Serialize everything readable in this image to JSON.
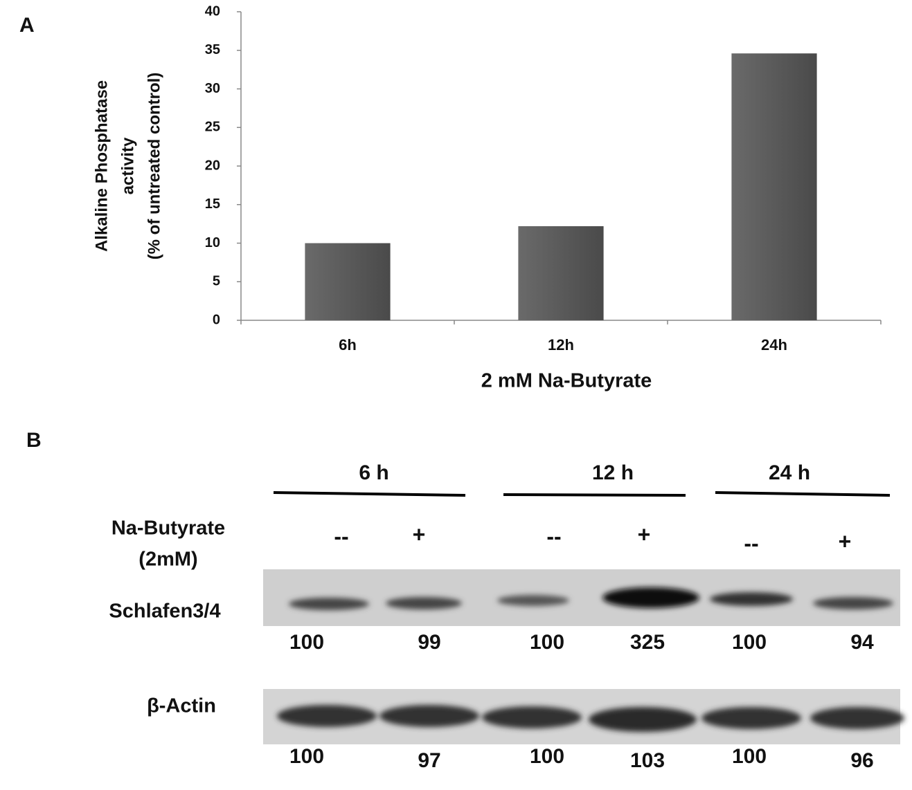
{
  "chart_data": {
    "type": "bar",
    "panel_label": "A",
    "y_label": [
      "Alkaline Phosphatase",
      "activity",
      "(% of untreated control)"
    ],
    "x_label": "2 mM Na-Butyrate",
    "categories": [
      "6h",
      "12h",
      "24h"
    ],
    "values": [
      10,
      12.2,
      34.6
    ],
    "color": "#595959",
    "ylim": [
      0,
      40
    ],
    "yticks": [
      0,
      5,
      10,
      15,
      20,
      25,
      30,
      35,
      40
    ]
  },
  "blot": {
    "panel_label": "B",
    "time_points": [
      "6 h",
      "12 h",
      "24 h"
    ],
    "treatment_label": [
      "Na-Butyrate",
      "(2mM)"
    ],
    "treatments": [
      "--",
      "+",
      "--",
      "+",
      "--",
      "+"
    ],
    "rows": [
      {
        "label": "Schlafen3/4",
        "values": [
          100,
          99,
          100,
          325,
          100,
          94
        ]
      },
      {
        "label": "β-Actin",
        "values": [
          100,
          97,
          100,
          103,
          100,
          96
        ]
      }
    ]
  }
}
